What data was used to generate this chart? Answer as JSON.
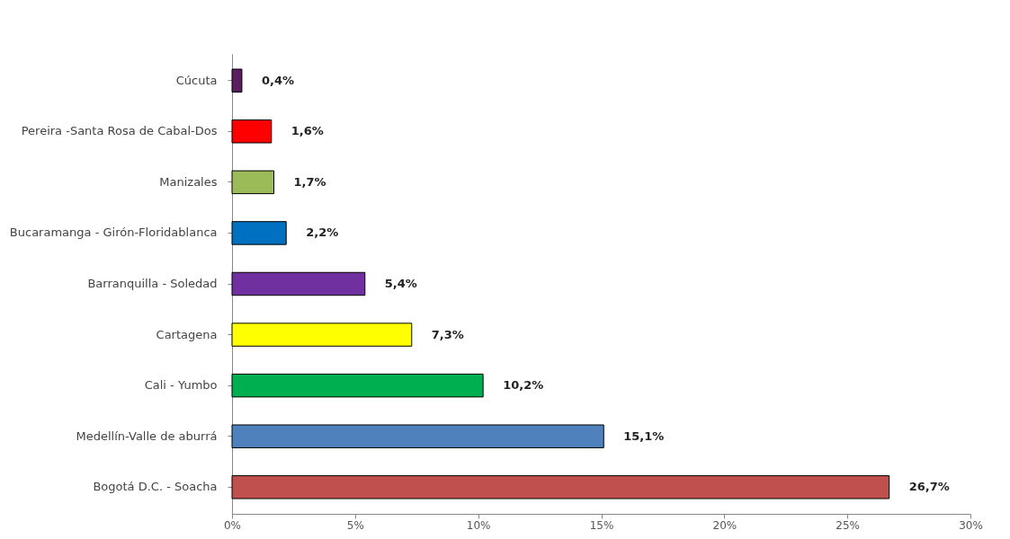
{
  "chart_data": {
    "type": "bar",
    "orientation": "horizontal",
    "categories": [
      "Cúcuta",
      "Pereira -Santa Rosa de Cabal-Dos",
      "Manizales",
      "Bucaramanga - Girón-Floridablanca",
      "Barranquilla - Soledad",
      "Cartagena",
      "Cali - Yumbo",
      "Medellín-Valle de aburrá",
      "Bogotá D.C. - Soacha"
    ],
    "values": [
      0.4,
      1.6,
      1.7,
      2.2,
      5.4,
      7.3,
      10.2,
      15.1,
      26.7
    ],
    "colors": [
      "#5b1f5f",
      "#ff0000",
      "#9bbb59",
      "#0070c0",
      "#7030a0",
      "#ffff00",
      "#00b050",
      "#4f81bd",
      "#c0504d"
    ],
    "value_labels": [
      "0,4%",
      "1,6%",
      "1,7%",
      "2,2%",
      "5,4%",
      "7,3%",
      "10,2%",
      "15,1%",
      "26,7%"
    ],
    "xlim": [
      0,
      30
    ],
    "xticks": [
      {
        "value": 0,
        "label": "0%"
      },
      {
        "value": 5,
        "label": "5%"
      },
      {
        "value": 10,
        "label": "10%"
      },
      {
        "value": 15,
        "label": "15%"
      },
      {
        "value": 20,
        "label": "20%"
      },
      {
        "value": 25,
        "label": "25%"
      },
      {
        "value": 30,
        "label": "30%"
      }
    ],
    "grid": false,
    "legend": false
  }
}
